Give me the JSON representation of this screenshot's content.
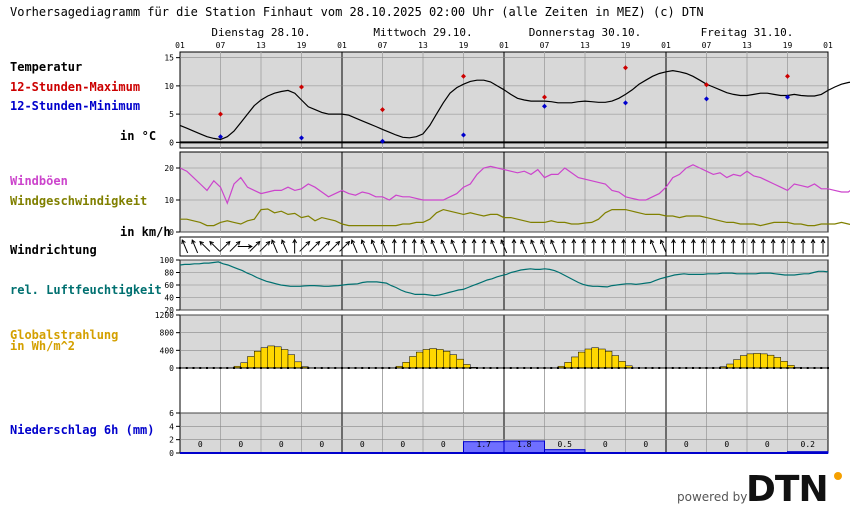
{
  "header": {
    "title": "Vorhersagediagramm für die Station Finhaut vom 28.10.2025 02:00 Uhr (alle Zeiten in MEZ)   (c) DTN"
  },
  "days": [
    "Dienstag 28.10.",
    "Mittwoch 29.10.",
    "Donnerstag 30.10.",
    "Freitag 31.10."
  ],
  "hour_ticks": [
    "01",
    "07",
    "13",
    "19",
    "01",
    "07",
    "13",
    "19",
    "01",
    "07",
    "13",
    "19",
    "01",
    "07",
    "13",
    "19",
    "01"
  ],
  "labels": {
    "temperatur": "Temperatur",
    "max12": "12-Stunden-Maximum",
    "min12": "12-Stunden-Minimum",
    "temp_unit": "in °C",
    "windboeen": "Windböen",
    "windgeschw": "Windgeschwindigkeit",
    "wind_unit": "in km/h",
    "windrichtung": "Windrichtung",
    "feuchte": "rel. Luftfeuchtigkeit",
    "global1": "Globalstrahlung",
    "global2": "in Wh/m^2",
    "niederschlag": "Niederschlag 6h (mm)"
  },
  "colors": {
    "temp": "#000000",
    "max": "#cc0000",
    "min": "#0000cc",
    "gust": "#cc44cc",
    "wind": "#808000",
    "humidity": "#007070",
    "radiation": "#ffd700",
    "radiation_label": "#d4a000",
    "precip": "#0000cc",
    "panel_bg": "#d8d8d8"
  },
  "footer": {
    "powered": "powered by",
    "brand": "DTN"
  },
  "chart_data": {
    "type": "line",
    "x_hours_from_start": "hourly, 01:00 on 28.10. to 01:00 on 01.11.",
    "temperature": {
      "ylim": [
        -1,
        16
      ],
      "ticks": [
        0,
        5,
        10,
        15
      ],
      "values": [
        3,
        2.5,
        2,
        1.5,
        1,
        0.7,
        0.5,
        1,
        2,
        3.5,
        5,
        6.5,
        7.5,
        8.2,
        8.7,
        9,
        9.2,
        8.7,
        7.5,
        6.3,
        5.8,
        5.3,
        5,
        5,
        5,
        4.8,
        4.3,
        3.8,
        3.3,
        2.8,
        2.3,
        1.8,
        1.3,
        0.9,
        0.8,
        1,
        1.5,
        3,
        5,
        7,
        8.7,
        9.7,
        10.3,
        10.8,
        11,
        11,
        10.7,
        10,
        9.3,
        8.5,
        7.8,
        7.5,
        7.3,
        7.3,
        7.3,
        7.2,
        7,
        7,
        7,
        7.2,
        7.3,
        7.2,
        7.1,
        7.1,
        7.3,
        7.8,
        8.5,
        9.3,
        10.3,
        11,
        11.7,
        12.2,
        12.5,
        12.7,
        12.5,
        12.2,
        11.7,
        11,
        10.3,
        9.8,
        9.3,
        8.8,
        8.5,
        8.3,
        8.3,
        8.5,
        8.7,
        8.7,
        8.5,
        8.3,
        8.3,
        8.5,
        8.3,
        8.2,
        8.2,
        8.5,
        9.2,
        9.8,
        10.3,
        10.6,
        10.8,
        11,
        11,
        11,
        10.9,
        10.7,
        10.3,
        9.8,
        9.3,
        8.8,
        8.5,
        8.5,
        8.4,
        8.3,
        8.1,
        7.7,
        7.2,
        6.8,
        6.6
      ]
    },
    "max_12h": [
      {
        "h": 6,
        "v": 5
      },
      {
        "h": 18,
        "v": 9.8
      },
      {
        "h": 30,
        "v": 5.8
      },
      {
        "h": 42,
        "v": 11.7
      },
      {
        "h": 54,
        "v": 8
      },
      {
        "h": 66,
        "v": 13.2
      },
      {
        "h": 78,
        "v": 10.2
      },
      {
        "h": 90,
        "v": 11.7
      }
    ],
    "min_12h": [
      {
        "h": 6,
        "v": 1
      },
      {
        "h": 18,
        "v": 0.8
      },
      {
        "h": 30,
        "v": 0.2
      },
      {
        "h": 42,
        "v": 1.3
      },
      {
        "h": 54,
        "v": 6.4
      },
      {
        "h": 66,
        "v": 7
      },
      {
        "h": 78,
        "v": 7.7
      },
      {
        "h": 90,
        "v": 8
      }
    ],
    "wind": {
      "ylim": [
        0,
        25
      ],
      "ticks": [
        0,
        10,
        20
      ],
      "gust": [
        20,
        19,
        17,
        15,
        13,
        16,
        14,
        9,
        15,
        17,
        14,
        13,
        12,
        12.5,
        13,
        13,
        14,
        13,
        13.5,
        15,
        14,
        12.5,
        11,
        12,
        13,
        12,
        11.5,
        12.5,
        12,
        11,
        11,
        10,
        11.5,
        11,
        11,
        10.5,
        10,
        10,
        10,
        10,
        11,
        12,
        14,
        15,
        18,
        20,
        20.5,
        20,
        19.5,
        19,
        18.5,
        19,
        18,
        19.5,
        17,
        18,
        18,
        20,
        18.5,
        17,
        16.5,
        16,
        15.5,
        15,
        13,
        12.5,
        11,
        10.5,
        10,
        10,
        11,
        12,
        14,
        17,
        18,
        20,
        21,
        20,
        19,
        18,
        18.5,
        17,
        18,
        17.5,
        19,
        17.5,
        17,
        16,
        15,
        14,
        13,
        15,
        14.5,
        14,
        15,
        13.5,
        13.5,
        13,
        12.5,
        12.5,
        14,
        13,
        13,
        15,
        14,
        16,
        14.5,
        19,
        20.5,
        18,
        16,
        15,
        15,
        13,
        12,
        14,
        13,
        12.5,
        14,
        14.5,
        14,
        13,
        12,
        12,
        13
      ],
      "speed": [
        4,
        4,
        3.5,
        3,
        2,
        2,
        3,
        3.5,
        3,
        2.5,
        3.5,
        4,
        7,
        7.2,
        6,
        6.5,
        5.5,
        5.8,
        4.5,
        5,
        3.5,
        4.5,
        4,
        3.5,
        2.5,
        2,
        2,
        2,
        2,
        2,
        2,
        2,
        2,
        2.5,
        2.5,
        3,
        3,
        4,
        6,
        7,
        6.5,
        6,
        5.5,
        6,
        5.5,
        5,
        5.5,
        5.5,
        4.5,
        4.5,
        4,
        3.5,
        3,
        3,
        3,
        3.5,
        3,
        3,
        2.5,
        2.5,
        2.8,
        3,
        4,
        6,
        7,
        7,
        7,
        6.5,
        6,
        5.5,
        5.5,
        5.5,
        5,
        5,
        4.5,
        5,
        5,
        5,
        4.5,
        4,
        3.5,
        3,
        3,
        2.5,
        2.5,
        2.5,
        2,
        2.5,
        3,
        3,
        3,
        2.5,
        2.5,
        2,
        2,
        2.5,
        2.5,
        2.5,
        3,
        2.5,
        2,
        2.5,
        2,
        2.5,
        3.5,
        4.5,
        6,
        7,
        7.5,
        7,
        5,
        4,
        3.5,
        3,
        3,
        2.5,
        3,
        2.5,
        2.5,
        2,
        2,
        2.5,
        3
      ]
    },
    "wind_direction": [
      "SSE",
      "SSE",
      "SE",
      "SE",
      "SW",
      "SW",
      "W",
      "SW",
      "SW",
      "SSE",
      "SSE",
      "S",
      "SW",
      "SW",
      "SW",
      "SW",
      "SW",
      "SSE",
      "SSE",
      "SSE",
      "SSE",
      "S",
      "S",
      "S",
      "SSE",
      "SSE",
      "SSE",
      "SSE",
      "S",
      "S",
      "S",
      "SSE",
      "SSE",
      "S",
      "SSE",
      "SSE",
      "SSE",
      "SSE",
      "S",
      "S",
      "S",
      "S",
      "S",
      "S",
      "S",
      "S",
      "S",
      "SSE",
      "SSE",
      "S",
      "S",
      "S",
      "S",
      "S",
      "S",
      "S",
      "S",
      "S",
      "S",
      "S",
      "S",
      "S",
      "S",
      "S",
      "S"
    ],
    "humidity": {
      "ylim": [
        20,
        100
      ],
      "ticks": [
        20,
        40,
        60,
        80,
        100
      ],
      "values": [
        92,
        93,
        93,
        94,
        94,
        95,
        95,
        96,
        97,
        94,
        92,
        89,
        86,
        83,
        79,
        76,
        72,
        69,
        66,
        64,
        62,
        60,
        59,
        58,
        58,
        58,
        58.5,
        59,
        59,
        58.5,
        58,
        58,
        58.5,
        59,
        60,
        61,
        61.5,
        62,
        64,
        65,
        65,
        65,
        64,
        63,
        59,
        56,
        52,
        49,
        47,
        45,
        45,
        45,
        44,
        43,
        44,
        46,
        48,
        50,
        52,
        53,
        56,
        59,
        62,
        65,
        68,
        70,
        73,
        75,
        77,
        80,
        82,
        84,
        85,
        86,
        85,
        85,
        86,
        85,
        83,
        80,
        76,
        72,
        68,
        64,
        61,
        59,
        58,
        58,
        57.5,
        57,
        59,
        60,
        61,
        62,
        62,
        61,
        62,
        63,
        64,
        67,
        70,
        72,
        74,
        76,
        77,
        78,
        77,
        77,
        77,
        77,
        78,
        78,
        78,
        79,
        79,
        79,
        78,
        78,
        78,
        78,
        78,
        79,
        79,
        79,
        78,
        77,
        76,
        76,
        76,
        77,
        78,
        78,
        80,
        82,
        82,
        81
      ]
    },
    "radiation": {
      "ylim": [
        0,
        1200
      ],
      "ticks": [
        0,
        400,
        800,
        1200
      ],
      "hourly": [
        0,
        0,
        0,
        0,
        0,
        0,
        0,
        5,
        40,
        120,
        260,
        380,
        460,
        500,
        480,
        420,
        300,
        140,
        30,
        0,
        0,
        0,
        0,
        0,
        0,
        0,
        0,
        0,
        0,
        0,
        0,
        5,
        40,
        130,
        260,
        360,
        420,
        440,
        420,
        380,
        300,
        200,
        80,
        15,
        0,
        0,
        0,
        0,
        0,
        0,
        0,
        0,
        0,
        0,
        0,
        5,
        40,
        130,
        250,
        360,
        430,
        460,
        430,
        380,
        280,
        150,
        50,
        5,
        0,
        0,
        0,
        0,
        0,
        0,
        0,
        0,
        0,
        0,
        0,
        5,
        30,
        90,
        190,
        280,
        320,
        330,
        320,
        290,
        240,
        150,
        60,
        10,
        0,
        0,
        0,
        0
      ]
    },
    "precipitation_6h": {
      "ylim": [
        0,
        6
      ],
      "ticks": [
        0,
        2,
        4,
        6
      ],
      "values": [
        0,
        0,
        0,
        0,
        0,
        0,
        0,
        1.7,
        1.8,
        0.5,
        0,
        0,
        0,
        0,
        0,
        0.2
      ],
      "labels": [
        "0",
        "0",
        "0",
        "0",
        "0",
        "0",
        "0",
        "1.7",
        "1.8",
        "0.5",
        "0",
        "0",
        "0",
        "0",
        "0",
        "0.2"
      ]
    }
  }
}
